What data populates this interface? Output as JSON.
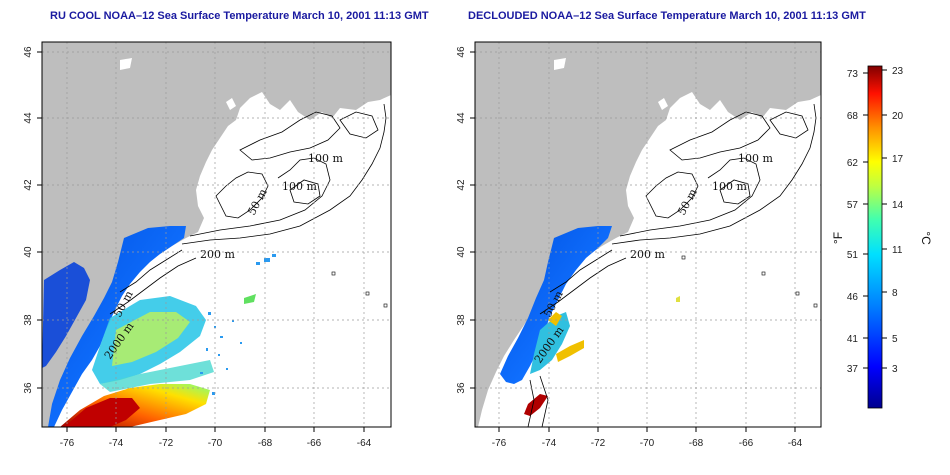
{
  "chart_data": [
    {
      "type": "map",
      "title": "RU COOL NOAA–12 Sea Surface Temperature March 10, 2001 11:13 GMT",
      "x_ticks": [
        "-76",
        "-74",
        "-72",
        "-70",
        "-68",
        "-66",
        "-64"
      ],
      "y_ticks": [
        "36",
        "38",
        "40",
        "42",
        "44",
        "46"
      ],
      "xlim": [
        -77,
        -63
      ],
      "ylim": [
        35,
        46
      ],
      "grid": true,
      "contour_labels": [
        "100 m",
        "100 m",
        "50 m",
        "200 m",
        "50 m",
        "2000 m"
      ]
    },
    {
      "type": "map",
      "title": "DECLOUDED NOAA–12 Sea Surface Temperature March 10, 2001 11:13 GMT",
      "x_ticks": [
        "-76",
        "-74",
        "-72",
        "-70",
        "-68",
        "-66",
        "-64"
      ],
      "y_ticks": [
        "36",
        "38",
        "40",
        "42",
        "44",
        "46"
      ],
      "xlim": [
        -77,
        -63
      ],
      "ylim": [
        35,
        46
      ],
      "grid": true,
      "contour_labels": [
        "100 m",
        "100 m",
        "50 m",
        "200 m",
        "50 m",
        "2000 m"
      ]
    }
  ],
  "colorbar": {
    "fahrenheit_label": "°F",
    "celsius_label": "°C",
    "fahrenheit_ticks": [
      "73",
      "68",
      "62",
      "57",
      "51",
      "46",
      "41",
      "37"
    ],
    "celsius_ticks": [
      "23",
      "20",
      "17",
      "14",
      "11",
      "8",
      "5",
      "3"
    ],
    "range_c": [
      1,
      23
    ]
  }
}
